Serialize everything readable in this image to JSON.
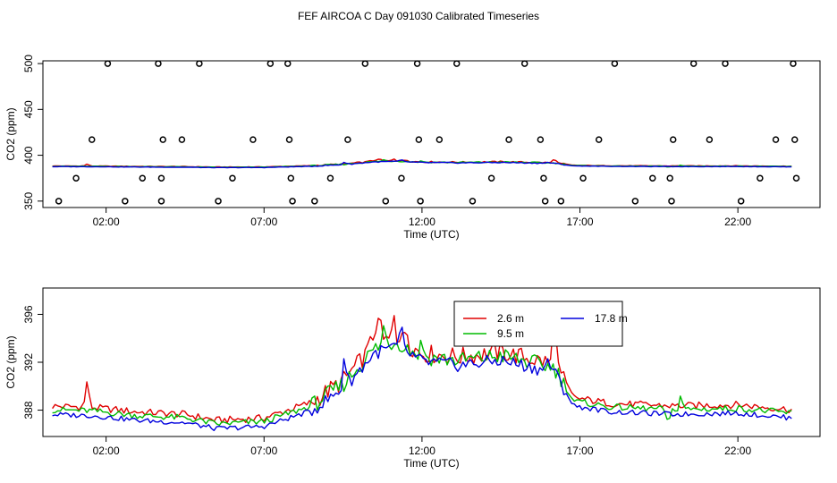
{
  "title": "FEF AIRCOA C  Day 091030  Calibrated Timeseries",
  "chart_data": [
    {
      "type": "scatter+line",
      "xlabel": "Time (UTC)",
      "ylabel": "CO2 (ppm)",
      "xlim": [
        0.0,
        24.6
      ],
      "ylim": [
        343,
        503
      ],
      "x_ticks": [
        2,
        7,
        12,
        17,
        22
      ],
      "x_tick_labels": [
        "02:00",
        "07:00",
        "12:00",
        "17:00",
        "22:00"
      ],
      "y_ticks": [
        350,
        400,
        450,
        500
      ],
      "y_tick_labels": [
        "350",
        "400",
        "450",
        "500"
      ],
      "calibration_points": {
        "color": "#000000",
        "hours": [
          0.5,
          1.05,
          1.55,
          2.05,
          2.6,
          3.15,
          3.65,
          3.75,
          3.75,
          3.8,
          4.4,
          4.95,
          5.55,
          6.0,
          6.65,
          7.2,
          7.75,
          7.8,
          7.85,
          7.9,
          8.6,
          9.1,
          9.65,
          10.2,
          10.85,
          11.35,
          11.85,
          11.9,
          11.95,
          12.55,
          13.1,
          13.6,
          14.2,
          14.75,
          15.25,
          15.75,
          15.85,
          15.9,
          16.4,
          17.1,
          17.6,
          18.1,
          18.75,
          19.3,
          19.85,
          19.9,
          19.95,
          20.6,
          21.1,
          21.6,
          22.1,
          22.7,
          23.2,
          23.75,
          23.8,
          23.85
        ],
        "values": [
          350,
          375,
          417,
          500,
          350,
          375,
          500,
          375,
          350,
          417,
          417,
          500,
          350,
          375,
          417,
          500,
          500,
          417,
          375,
          350,
          350,
          375,
          417,
          500,
          350,
          375,
          500,
          417,
          350,
          417,
          500,
          350,
          375,
          417,
          500,
          417,
          375,
          350,
          350,
          375,
          417,
          500,
          350,
          375,
          375,
          350,
          417,
          500,
          417,
          500,
          350,
          375,
          417,
          500,
          417,
          375
        ]
      }
    },
    {
      "type": "line",
      "xlabel": "Time (UTC)",
      "ylabel": "CO2 (ppm)",
      "xlim": [
        0.0,
        24.6
      ],
      "ylim": [
        385.8,
        398.2
      ],
      "x_ticks": [
        2,
        7,
        12,
        17,
        22
      ],
      "x_tick_labels": [
        "02:00",
        "07:00",
        "12:00",
        "17:00",
        "22:00"
      ],
      "y_ticks": [
        388,
        392,
        396
      ],
      "y_tick_labels": [
        "388",
        "392",
        "396"
      ],
      "legend": {
        "position": "top-center",
        "labels": [
          "2.6 m",
          "9.5 m",
          "17.8 m"
        ],
        "colors": [
          "#e00000",
          "#00bb00",
          "#0000dd"
        ]
      }
    }
  ]
}
